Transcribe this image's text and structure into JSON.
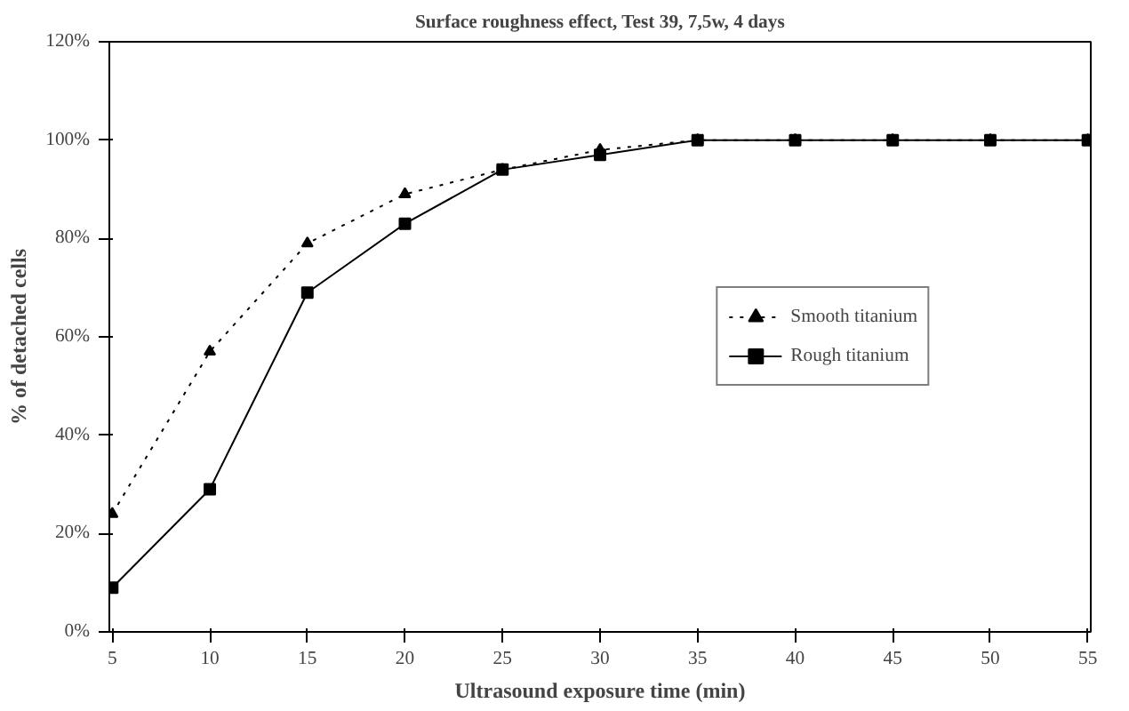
{
  "chart_data": {
    "type": "line",
    "title": "Surface roughness effect, Test 39, 7,5w, 4 days",
    "xlabel": "Ultrasound exposure time (min)",
    "ylabel": "% of detached cells",
    "categories": [
      "5",
      "10",
      "15",
      "20",
      "25",
      "30",
      "35",
      "40",
      "45",
      "50",
      "55"
    ],
    "series": [
      {
        "name": "Smooth titanium",
        "color": "#000000",
        "marker": "triangle",
        "line_style": "dotted",
        "values": [
          24,
          57,
          79,
          89,
          94,
          98,
          100,
          100,
          100,
          100,
          100
        ]
      },
      {
        "name": "Rough titanium",
        "color": "#000000",
        "marker": "square",
        "line_style": "solid",
        "values": [
          9,
          29,
          69,
          83,
          94,
          97,
          100,
          100,
          100,
          100,
          100
        ]
      }
    ],
    "ylim": [
      0,
      120
    ],
    "yticks": [
      {
        "value": 0,
        "label": "0%"
      },
      {
        "value": 20,
        "label": "20%"
      },
      {
        "value": 40,
        "label": "40%"
      },
      {
        "value": 60,
        "label": "60%"
      },
      {
        "value": 80,
        "label": "80%"
      },
      {
        "value": 100,
        "label": "100%"
      },
      {
        "value": 120,
        "label": "120%"
      }
    ],
    "grid": false,
    "legend": "right"
  }
}
